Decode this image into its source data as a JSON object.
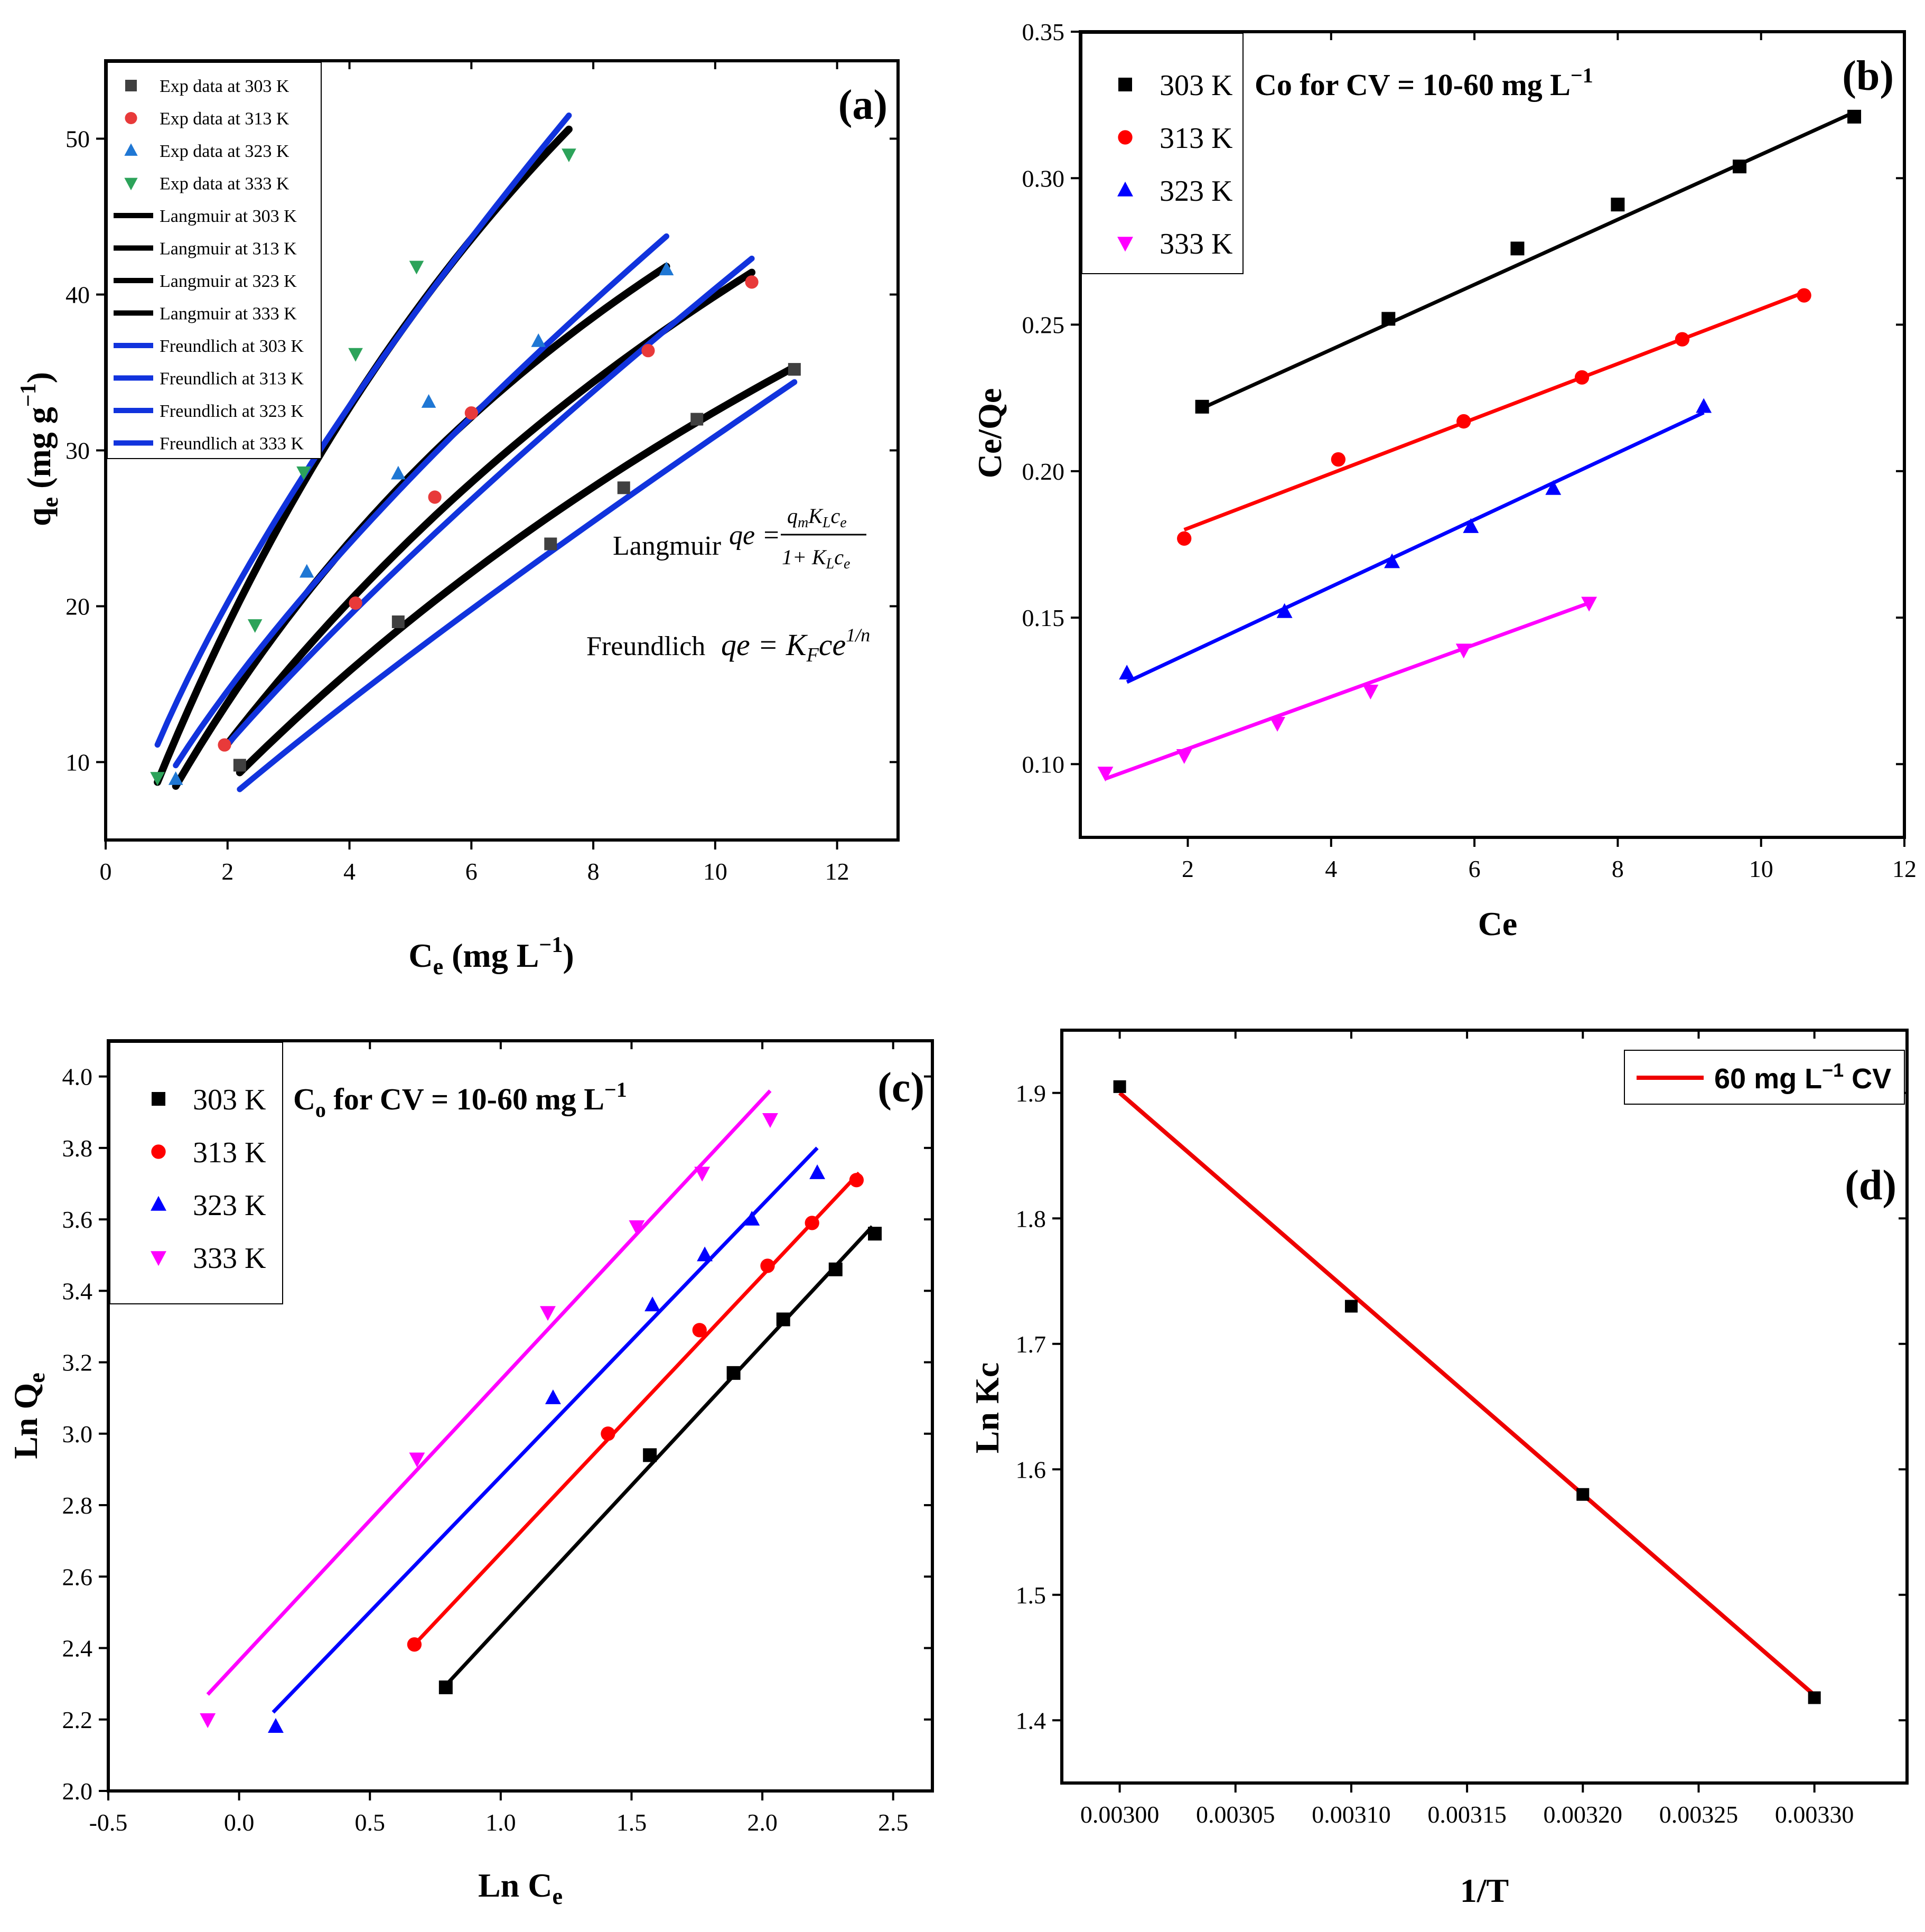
{
  "chart_data": [
    {
      "id": "a",
      "type": "scatter",
      "panel_label": "(a)",
      "xlabel_main": "C",
      "xlabel_sub": "e",
      "xlabel_rest": " (mg L",
      "xlabel_sup": "−1",
      "xlabel_close": ")",
      "ylabel_main": "q",
      "ylabel_sub": "e",
      "ylabel_rest": " (mg g",
      "ylabel_sup": "−1",
      "ylabel_close": ")",
      "xlim": [
        0,
        13
      ],
      "ylim": [
        5,
        55
      ],
      "xticks": [
        0,
        2,
        4,
        6,
        8,
        10,
        12
      ],
      "yticks": [
        10,
        20,
        30,
        40,
        50
      ],
      "series": [
        {
          "name": "Exp data at 303 K",
          "kind": "points",
          "marker": "square",
          "color": "#404040",
          "x": [
            2.2,
            4.8,
            7.3,
            8.5,
            9.7,
            11.3
          ],
          "y": [
            9.8,
            19.0,
            24.0,
            27.6,
            32.0,
            35.2
          ]
        },
        {
          "name": "Exp data at 313 K",
          "kind": "points",
          "marker": "circle",
          "color": "#e83a3a",
          "x": [
            1.95,
            4.1,
            5.4,
            6.0,
            8.9,
            10.6
          ],
          "y": [
            11.1,
            20.2,
            27.0,
            32.4,
            36.4,
            40.8
          ]
        },
        {
          "name": "Exp data at 323 K",
          "kind": "points",
          "marker": "triangle",
          "color": "#1f77d4",
          "x": [
            1.15,
            3.3,
            4.8,
            5.3,
            7.1,
            9.2
          ],
          "y": [
            8.9,
            22.2,
            28.5,
            33.1,
            37.0,
            41.6
          ]
        },
        {
          "name": "Exp data at 333 K",
          "kind": "points",
          "marker": "triangle-down",
          "color": "#2ca35a",
          "x": [
            0.85,
            2.45,
            3.25,
            4.1,
            5.1,
            7.6
          ],
          "y": [
            9.0,
            18.8,
            28.6,
            36.2,
            41.8,
            49.0
          ]
        },
        {
          "name": "Langmuir at 303 K",
          "kind": "curve",
          "color": "#000000",
          "x": [
            2.2,
            11.3
          ],
          "fn": "lang",
          "p": [
            108.6,
            0.0427
          ]
        },
        {
          "name": "Langmuir at 313 K",
          "kind": "curve",
          "color": "#000000",
          "x": [
            1.95,
            10.6
          ],
          "fn": "lang",
          "p": [
            111.7,
            0.0556
          ]
        },
        {
          "name": "Langmuir at 323 K",
          "kind": "curve",
          "color": "#000000",
          "x": [
            1.15,
            9.2
          ],
          "fn": "lang",
          "p": [
            95.7,
            0.0843
          ]
        },
        {
          "name": "Langmuir at 333 K",
          "kind": "curve",
          "color": "#000000",
          "x": [
            0.85,
            7.6
          ],
          "fn": "lang",
          "p": [
            128.3,
            0.0857
          ]
        },
        {
          "name": "Freundlich at 303 K",
          "kind": "curve",
          "color": "#1133dd",
          "x": [
            2.2,
            11.3
          ],
          "fn": "freund",
          "p": [
            4.15,
            0.872
          ]
        },
        {
          "name": "Freundlich at 313 K",
          "kind": "curve",
          "color": "#1133dd",
          "x": [
            1.95,
            10.6
          ],
          "fn": "freund",
          "p": [
            6.4,
            0.8
          ]
        },
        {
          "name": "Freundlich at 323 K",
          "kind": "curve",
          "color": "#1133dd",
          "x": [
            1.15,
            9.2
          ],
          "fn": "freund",
          "p": [
            8.85,
            0.72
          ]
        },
        {
          "name": "Freundlich at 333 K",
          "kind": "curve",
          "color": "#1133dd",
          "x": [
            0.85,
            7.6
          ],
          "fn": "freund",
          "p": [
            12.45,
            0.7
          ]
        }
      ],
      "langmuir_label": "Langmuir",
      "langmuir_lhs": "qe =",
      "langmuir_num": "q",
      "langmuir_num_sub1": "m",
      "langmuir_num_mid": "K",
      "langmuir_num_sub2": "L",
      "langmuir_num_end": "c",
      "langmuir_num_sub3": "e",
      "langmuir_den": "1+ K",
      "langmuir_den_sub1": "L",
      "langmuir_den_end": "c",
      "langmuir_den_sub2": "e",
      "freundlich_label": "Freundlich",
      "freundlich_lhs": "qe = K",
      "freundlich_sub": "F",
      "freundlich_rest": "ce",
      "freundlich_sup": "1/n"
    },
    {
      "id": "b",
      "type": "scatter",
      "panel_label": "(b)",
      "xlabel": "Ce",
      "ylabel": "Ce/Qe",
      "annotation_main": "Co for CV = 10-60 mg L",
      "annotation_sup": "−1",
      "xlim": [
        0.5,
        12
      ],
      "ylim": [
        0.075,
        0.35
      ],
      "xticks": [
        2,
        4,
        6,
        8,
        10,
        12
      ],
      "yticks": [
        0.1,
        0.15,
        0.2,
        0.25,
        0.3,
        0.35
      ],
      "ytick_labels": [
        "0.10",
        "0.15",
        "0.20",
        "0.25",
        "0.30",
        "0.35"
      ],
      "series": [
        {
          "name": "303 K",
          "marker": "square",
          "color": "#000000",
          "x": [
            2.2,
            4.8,
            6.6,
            8.0,
            9.7,
            11.3
          ],
          "y": [
            0.222,
            0.252,
            0.276,
            0.291,
            0.304,
            0.321
          ],
          "fit": [
            [
              2.2,
              0.2215
            ],
            [
              11.3,
              0.3225
            ]
          ]
        },
        {
          "name": "313 K",
          "marker": "circle",
          "color": "#ff0000",
          "x": [
            1.95,
            4.1,
            5.85,
            7.5,
            8.9,
            10.6
          ],
          "y": [
            0.177,
            0.204,
            0.217,
            0.232,
            0.245,
            0.26
          ],
          "fit": [
            [
              1.95,
              0.18
            ],
            [
              10.6,
              0.261
            ]
          ]
        },
        {
          "name": "323 K",
          "marker": "triangle",
          "color": "#0000ff",
          "x": [
            1.15,
            3.35,
            4.85,
            5.95,
            7.1,
            9.2
          ],
          "y": [
            0.131,
            0.152,
            0.169,
            0.181,
            0.194,
            0.222
          ],
          "fit": [
            [
              1.15,
              0.128
            ],
            [
              9.2,
              0.22
            ]
          ]
        },
        {
          "name": "333 K",
          "marker": "triangle-down",
          "color": "#ff00ff",
          "x": [
            0.85,
            1.95,
            3.25,
            4.55,
            5.85,
            7.6
          ],
          "y": [
            0.097,
            0.103,
            0.114,
            0.125,
            0.139,
            0.155
          ],
          "fit": [
            [
              0.85,
              0.095
            ],
            [
              7.6,
              0.155
            ]
          ]
        }
      ]
    },
    {
      "id": "c",
      "type": "scatter",
      "panel_label": "(c)",
      "xlabel_main": "Ln C",
      "xlabel_sub": "e",
      "ylabel_main": "Ln Q",
      "ylabel_sub": "e",
      "annotation_main": "C",
      "annotation_sub": "o",
      "annotation_rest": " for CV = 10-60 mg L",
      "annotation_sup": "−1",
      "xlim": [
        -0.5,
        2.65
      ],
      "ylim": [
        2.0,
        4.1
      ],
      "xticks": [
        -0.5,
        0.0,
        0.5,
        1.0,
        1.5,
        2.0,
        2.5
      ],
      "xtick_labels": [
        "-0.5",
        "0.0",
        "0.5",
        "1.0",
        "1.5",
        "2.0",
        "2.5"
      ],
      "yticks": [
        2.0,
        2.2,
        2.4,
        2.6,
        2.8,
        3.0,
        3.2,
        3.4,
        3.6,
        3.8,
        4.0
      ],
      "ytick_labels": [
        "2.0",
        "2.2",
        "2.4",
        "2.6",
        "2.8",
        "3.0",
        "3.2",
        "3.4",
        "3.6",
        "3.8",
        "4.0"
      ],
      "series": [
        {
          "name": "303 K",
          "marker": "square",
          "color": "#000000",
          "x": [
            0.79,
            1.57,
            1.89,
            2.08,
            2.28,
            2.43
          ],
          "y": [
            2.29,
            2.94,
            3.17,
            3.32,
            3.46,
            3.56
          ],
          "fit": [
            [
              0.77,
              2.28
            ],
            [
              2.42,
              3.58
            ]
          ]
        },
        {
          "name": "313 K",
          "marker": "circle",
          "color": "#ff0000",
          "x": [
            0.67,
            1.41,
            1.76,
            2.02,
            2.19,
            2.36
          ],
          "y": [
            2.41,
            3.0,
            3.29,
            3.47,
            3.59,
            3.71
          ],
          "fit": [
            [
              0.67,
              2.41
            ],
            [
              2.37,
              3.73
            ]
          ]
        },
        {
          "name": "323 K",
          "marker": "triangle",
          "color": "#0000ff",
          "x": [
            0.14,
            1.2,
            1.58,
            1.78,
            1.96,
            2.21
          ],
          "y": [
            2.18,
            3.1,
            3.36,
            3.5,
            3.6,
            3.73
          ],
          "fit": [
            [
              0.13,
              2.22
            ],
            [
              2.21,
              3.8
            ]
          ]
        },
        {
          "name": "333 K",
          "marker": "triangle-down",
          "color": "#ff00ff",
          "x": [
            -0.12,
            0.68,
            1.18,
            1.52,
            1.77,
            2.03
          ],
          "y": [
            2.2,
            2.93,
            3.34,
            3.58,
            3.73,
            3.88
          ],
          "fit": [
            [
              -0.12,
              2.27
            ],
            [
              2.03,
              3.96
            ]
          ]
        }
      ]
    },
    {
      "id": "d",
      "type": "scatter",
      "panel_label": "(d)",
      "xlabel": "1/T",
      "ylabel": "Ln Kc",
      "xlim": [
        0.002975,
        0.00334
      ],
      "ylim": [
        1.35,
        1.95
      ],
      "xticks": [
        0.003,
        0.00305,
        0.0031,
        0.00315,
        0.0032,
        0.00325,
        0.0033
      ],
      "xtick_labels": [
        "0.00300",
        "0.00305",
        "0.00310",
        "0.00315",
        "0.00320",
        "0.00325",
        "0.00330"
      ],
      "yticks": [
        1.4,
        1.5,
        1.6,
        1.7,
        1.8,
        1.9
      ],
      "ytick_labels": [
        "1.4",
        "1.5",
        "1.6",
        "1.7",
        "1.8",
        "1.9"
      ],
      "legend_main": "60 mg L",
      "legend_sup": "−1",
      "legend_rest": " CV",
      "series": [
        {
          "name": "points",
          "marker": "square",
          "color": "#000000",
          "x": [
            0.003,
            0.0031,
            0.0032,
            0.0033
          ],
          "y": [
            1.905,
            1.73,
            1.58,
            1.418
          ]
        },
        {
          "name": "60 mg L−1 CV",
          "kind": "line",
          "color": "#ee0000",
          "fit": [
            [
              0.003,
              1.9
            ],
            [
              0.0033,
              1.42
            ]
          ]
        }
      ]
    }
  ]
}
